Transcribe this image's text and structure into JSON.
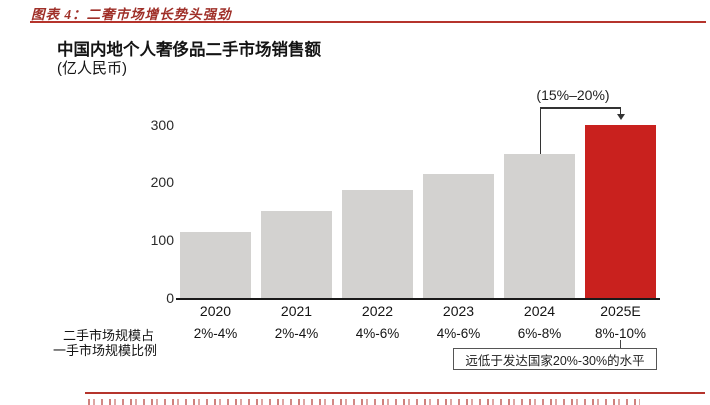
{
  "header": {
    "caption": "图表 4：二奢市场增长势头强劲"
  },
  "chart": {
    "title": "中国内地个人奢侈品二手市场销售额",
    "unit_label": "(亿人民币)",
    "growth_annotation": "(15%–20%)",
    "ratio_row_label_line1": "二手市场规模占",
    "ratio_row_label_line2": "一手市场规模比例",
    "note_box_text": "远低于发达国家20%-30%的水平"
  },
  "chart_data": {
    "type": "bar",
    "title": "中国内地个人奢侈品二手市场销售额",
    "ylabel": "亿人民币",
    "xlabel": "",
    "categories": [
      "2020",
      "2021",
      "2022",
      "2023",
      "2024",
      "2025E"
    ],
    "values": [
      115,
      150,
      187,
      215,
      250,
      300
    ],
    "yticks": [
      0,
      100,
      200,
      300
    ],
    "ylim": [
      0,
      310
    ],
    "grid": false,
    "legend": false,
    "highlight_index": 5,
    "bar_color": "#d3d2d0",
    "highlight_color": "#c9211e",
    "annotations": [
      {
        "text": "(15%–20%)",
        "type": "growth-bracket",
        "from_category": "2024",
        "to_category": "2025E"
      },
      {
        "text": "远低于发达国家20%-30%的水平",
        "type": "boxed-note",
        "attached_to_category": "2025E"
      }
    ],
    "secondary_row": {
      "label": "二手市场规模占一手市场规模比例",
      "values": [
        "2%-4%",
        "2%-4%",
        "4%-6%",
        "4%-6%",
        "6%-8%",
        "8%-10%"
      ]
    }
  },
  "colors": {
    "caption_red": "#9f2f28",
    "rule_red": "#b5342c",
    "bar_gray": "#d3d2d0",
    "bar_red": "#c9211e",
    "axis_black": "#1a1a1a"
  }
}
